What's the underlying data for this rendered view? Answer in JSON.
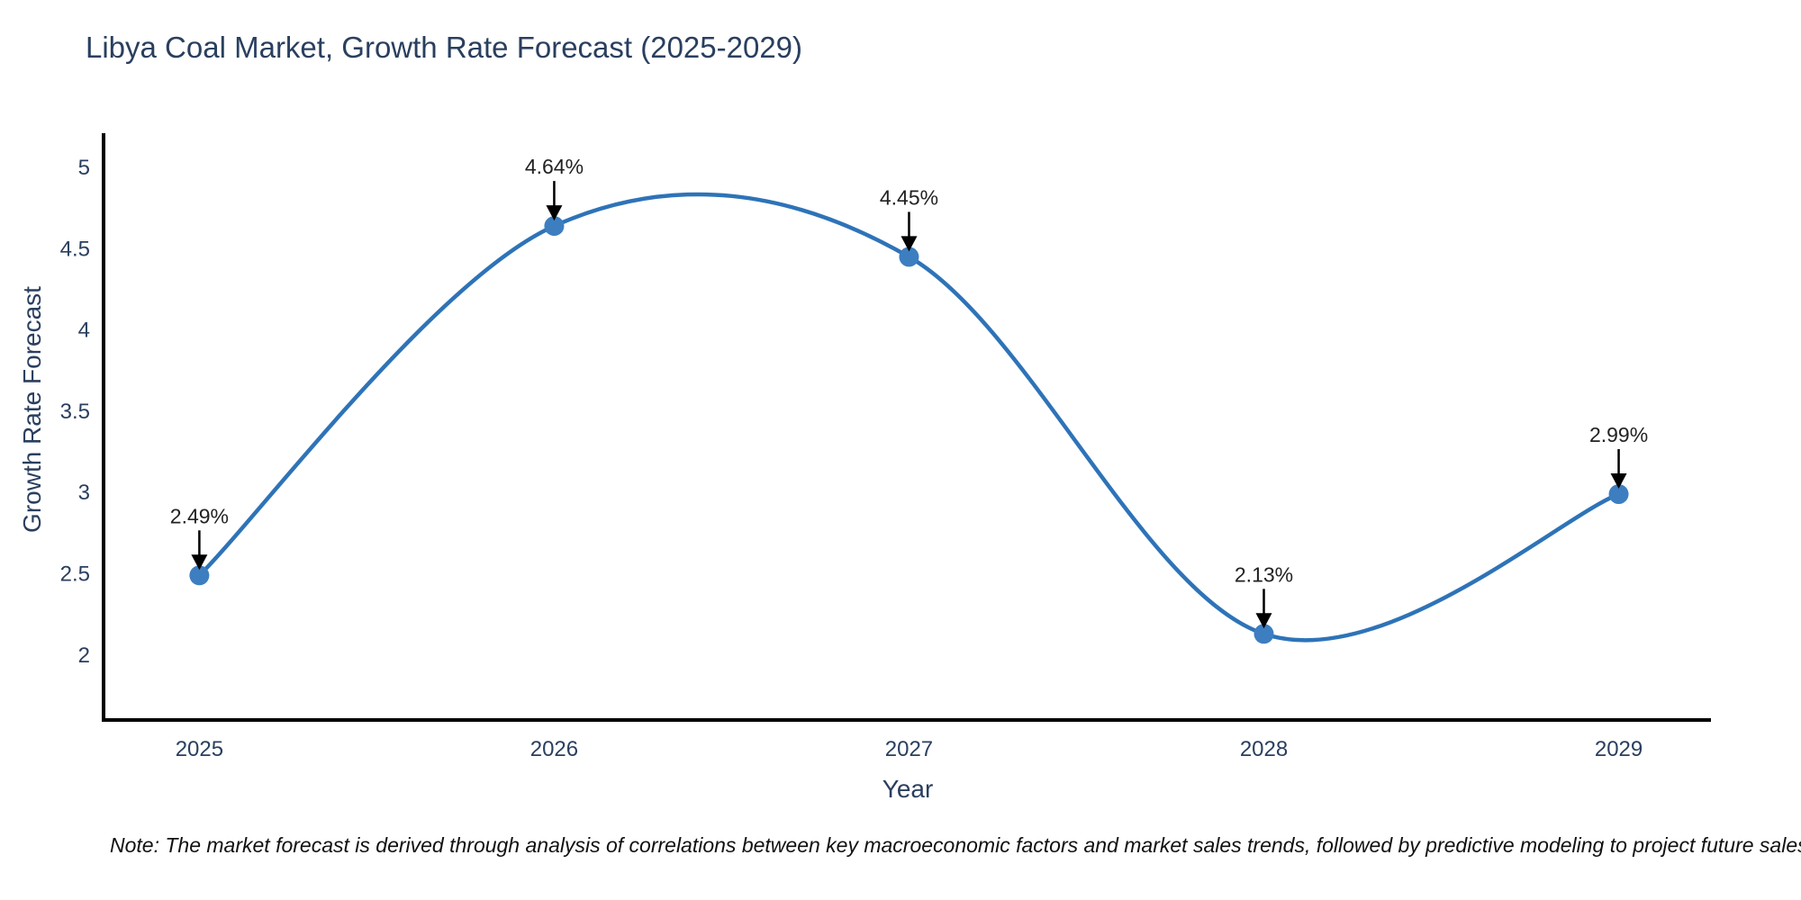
{
  "chart": {
    "title": "Libya Coal Market, Growth Rate Forecast (2025-2029)",
    "xlabel": "Year",
    "ylabel": "Growth Rate Forecast",
    "note": "Note: The market forecast is derived through analysis of correlations between key macroeconomic factors and market sales trends, followed by predictive modeling to project future sales."
  },
  "chart_data": {
    "type": "line",
    "title": "Libya Coal Market, Growth Rate Forecast (2025-2029)",
    "xlabel": "Year",
    "ylabel": "Growth Rate Forecast",
    "x": [
      2025,
      2026,
      2027,
      2028,
      2029
    ],
    "values": [
      2.49,
      4.64,
      4.45,
      2.13,
      2.99
    ],
    "point_labels": [
      "2.49%",
      "4.64%",
      "4.45%",
      "2.13%",
      "2.99%"
    ],
    "yticks": [
      2,
      2.5,
      3,
      3.5,
      4,
      4.5,
      5
    ],
    "xticks": [
      "2025",
      "2026",
      "2027",
      "2028",
      "2029"
    ],
    "xlim": [
      2024.73,
      2029.26
    ],
    "ylim": [
      1.6,
      5.2
    ],
    "line_shape": "spline",
    "grid": false,
    "legend": "none",
    "colors": {
      "line": "#2e73b8",
      "marker": "#3d7ec1",
      "axis_line": "#000000",
      "tick_text": "#2a3f5f",
      "annotation_text": "#222222",
      "arrow": "#000000"
    }
  }
}
